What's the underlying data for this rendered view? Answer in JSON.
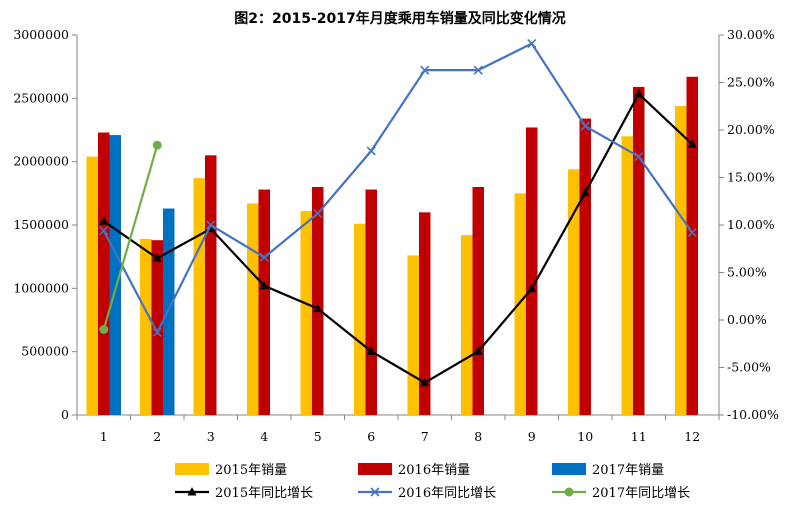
{
  "chart_data": {
    "type": "bar",
    "title": "图2：2015-2017年月度乘用车销量及同比变化情况",
    "categories": [
      "1",
      "2",
      "3",
      "4",
      "5",
      "6",
      "7",
      "8",
      "9",
      "10",
      "11",
      "12"
    ],
    "y_left": {
      "min": 0,
      "max": 3000000,
      "ticks": [
        "0",
        "500000",
        "1000000",
        "1500000",
        "2000000",
        "2500000",
        "3000000"
      ]
    },
    "y_right": {
      "min": -10,
      "max": 30,
      "ticks": [
        "-10.00%",
        "-5.00%",
        "0.00%",
        "5.00%",
        "10.00%",
        "15.00%",
        "20.00%",
        "25.00%",
        "30.00%"
      ]
    },
    "bar_series": [
      {
        "name": "2015年销量",
        "color": "#FFC000",
        "values": [
          2040000,
          1390000,
          1870000,
          1670000,
          1610000,
          1510000,
          1260000,
          1420000,
          1750000,
          1940000,
          2200000,
          2440000
        ]
      },
      {
        "name": "2016年销量",
        "color": "#C00000",
        "values": [
          2230000,
          1380000,
          2050000,
          1780000,
          1800000,
          1780000,
          1600000,
          1800000,
          2270000,
          2340000,
          2590000,
          2670000
        ]
      },
      {
        "name": "2017年销量",
        "color": "#0070C0",
        "values": [
          2210000,
          1630000,
          null,
          null,
          null,
          null,
          null,
          null,
          null,
          null,
          null,
          null
        ]
      }
    ],
    "line_series": [
      {
        "name": "2015年同比增长",
        "color": "#000000",
        "marker": "triangle",
        "values": [
          10.4,
          6.5,
          9.6,
          3.6,
          1.2,
          -3.3,
          -6.6,
          -3.3,
          3.3,
          13.4,
          23.8,
          18.5
        ]
      },
      {
        "name": "2016年同比增长",
        "color": "#4472C4",
        "marker": "x",
        "values": [
          9.4,
          -1.3,
          10.0,
          6.6,
          11.2,
          17.8,
          26.3,
          26.3,
          29.1,
          20.4,
          17.2,
          9.2
        ]
      },
      {
        "name": "2017年同比增长",
        "color": "#70AD47",
        "marker": "circle",
        "values": [
          -1.0,
          18.4,
          null,
          null,
          null,
          null,
          null,
          null,
          null,
          null,
          null,
          null
        ]
      }
    ],
    "legend": [
      {
        "label": "2015年销量",
        "kind": "bar",
        "color": "#FFC000"
      },
      {
        "label": "2016年销量",
        "kind": "bar",
        "color": "#C00000"
      },
      {
        "label": "2017年销量",
        "kind": "bar",
        "color": "#0070C0"
      },
      {
        "label": "2015年同比增长",
        "kind": "line",
        "marker": "triangle",
        "color": "#000000"
      },
      {
        "label": "2016年同比增长",
        "kind": "line",
        "marker": "x",
        "color": "#4472C4"
      },
      {
        "label": "2017年同比增长",
        "kind": "line",
        "marker": "circle",
        "color": "#70AD47"
      }
    ],
    "legend_position": "bottom",
    "grid": false
  }
}
